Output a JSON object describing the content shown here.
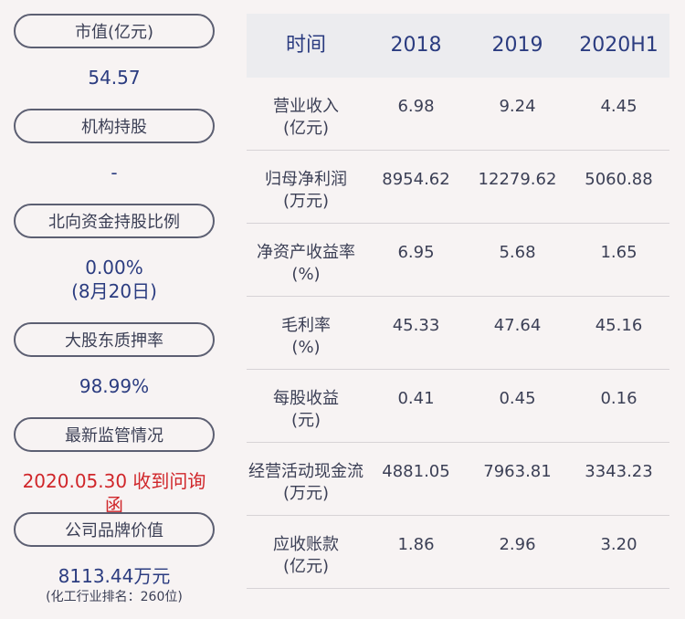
{
  "left_panel": [
    {
      "label": "市值(亿元)",
      "value": "54.57"
    },
    {
      "label": "机构持股",
      "value": "-"
    },
    {
      "label": "北向资金持股比例",
      "value": "0.00%",
      "value2": "(8月20日)"
    },
    {
      "label": "大股东质押率",
      "value": "98.99%"
    },
    {
      "label": "最新监管情况",
      "value": "2020.05.30 收到问询函"
    },
    {
      "label": "公司品牌价值",
      "value": "8113.44万元",
      "note": "(化工行业排名：260位)"
    }
  ],
  "table": {
    "headers": [
      "时间",
      "2018",
      "2019",
      "2020H1"
    ],
    "rows": [
      {
        "name": "营业收入",
        "unit": "(亿元)",
        "v": [
          "6.98",
          "9.24",
          "4.45"
        ]
      },
      {
        "name": "归母净利润",
        "unit": "(万元)",
        "v": [
          "8954.62",
          "12279.62",
          "5060.88"
        ]
      },
      {
        "name": "净资产收益率",
        "unit": "(%)",
        "v": [
          "6.95",
          "5.68",
          "1.65"
        ]
      },
      {
        "name": "毛利率",
        "unit": "(%)",
        "v": [
          "45.33",
          "47.64",
          "45.16"
        ]
      },
      {
        "name": "每股收益",
        "unit": "(元)",
        "v": [
          "0.41",
          "0.45",
          "0.16"
        ]
      },
      {
        "name": "经营活动现金流",
        "unit": "(万元)",
        "v": [
          "4881.05",
          "7963.81",
          "3343.23"
        ]
      },
      {
        "name": "应收账款",
        "unit": "(亿元)",
        "v": [
          "1.86",
          "2.96",
          "3.20"
        ]
      }
    ]
  },
  "colors": {
    "accent": "#2b3c80",
    "alert": "#d0262a",
    "border": "#5c5f72",
    "background": "#f7f3f3"
  }
}
